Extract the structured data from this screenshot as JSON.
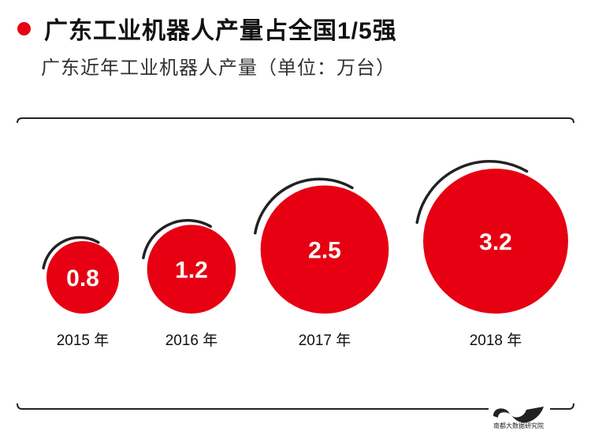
{
  "header": {
    "title": "广东工业机器人产量占全国1/5强",
    "subtitle": "广东近年工业机器人产量（单位：万台）"
  },
  "colors": {
    "accent": "#e60012",
    "arc": "#222222",
    "text": "#111111"
  },
  "logo": {
    "text": "南都大数据研究院"
  },
  "chart_data": {
    "type": "bubble",
    "title": "广东工业机器人产量占全国1/5强",
    "subtitle": "广东近年工业机器人产量（单位：万台）",
    "unit": "万台",
    "categories": [
      "2015 年",
      "2016 年",
      "2017 年",
      "2018 年"
    ],
    "values": [
      0.8,
      1.2,
      2.5,
      3.2
    ],
    "value_labels": [
      "0.8",
      "1.2",
      "2.5",
      "3.2"
    ]
  }
}
